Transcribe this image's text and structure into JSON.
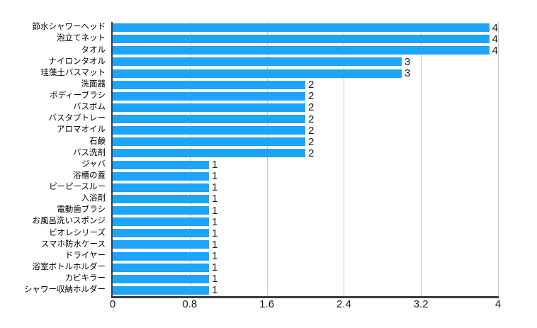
{
  "chart_data": {
    "type": "bar",
    "orientation": "horizontal",
    "title": "",
    "xlabel": "",
    "ylabel": "",
    "categories": [
      "節水シャワーヘッド",
      "泡立てネット",
      "タオル",
      "ナイロンタオル",
      "珪藻土バスマット",
      "洗面器",
      "ボディーブラシ",
      "バスボム",
      "バスタブトレー",
      "アロマオイル",
      "石鹸",
      "バス洗剤",
      "ジャバ",
      "浴槽の蓋",
      "ピーピースルー",
      "入浴剤",
      "電動歯ブラシ",
      "お風呂洗いスポンジ",
      "ビオレシリーズ",
      "スマホ防水ケース",
      "ドライヤー",
      "浴室ボトルホルダー",
      "カビキラー",
      "シャワー収納ホルダー"
    ],
    "values": [
      4,
      4,
      4,
      3,
      3,
      2,
      2,
      2,
      2,
      2,
      2,
      2,
      1,
      1,
      1,
      1,
      1,
      1,
      1,
      1,
      1,
      1,
      1,
      1
    ],
    "x_ticks": [
      "0",
      "0.8",
      "1.6",
      "2.4",
      "3.2",
      "4"
    ],
    "xlim": [
      0,
      4
    ],
    "grid": "vertical-gridlines-on",
    "legend": "none",
    "data_labels": "shown-at-bar-end",
    "colors": {
      "bar": "#1EA4F8",
      "grid": "#C6C6C6",
      "axis": "#3B3B3B",
      "text": "#000000"
    }
  }
}
